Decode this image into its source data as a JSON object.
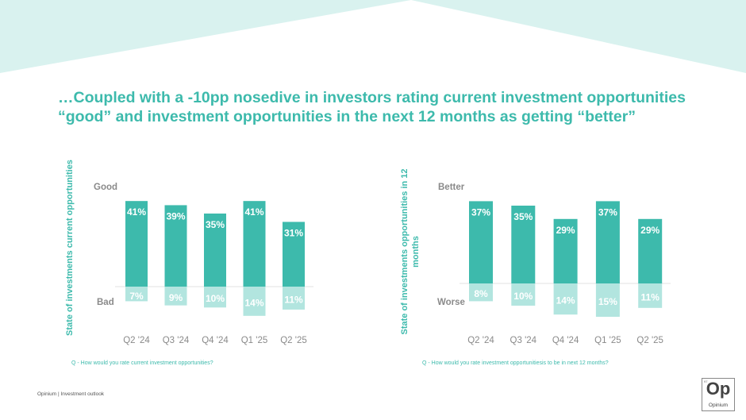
{
  "slide": {
    "title_line1": "…Coupled with a  -10pp nosedive in investors rating current investment opportunities",
    "title_line2": "“good” and investment opportunities in the next 12 months as getting “better”",
    "footer": "Opinium  |  Investment outlook",
    "logo": {
      "small": "97",
      "mark": "Op",
      "name": "Opinium"
    },
    "colors": {
      "accent": "#3dbaac",
      "positive_bar": "#3dbaac",
      "negative_bar": "#b2e5df",
      "header_band": "#d9f2ef",
      "tick_text": "#8a8a8a"
    }
  },
  "chart_data": [
    {
      "type": "bar",
      "stacked_diverging": true,
      "title": "",
      "ylabel": "State of investments current opportunities",
      "xlabel": "",
      "top_label": "Good",
      "bottom_label": "Bad",
      "categories": [
        "Q2 '24",
        "Q3 '24",
        "Q4 '24",
        "Q1 '25",
        "Q2 '25"
      ],
      "series": [
        {
          "name": "Good",
          "values": [
            41,
            39,
            35,
            41,
            31
          ],
          "labels": [
            "41%",
            "39%",
            "35%",
            "41%",
            "31%"
          ]
        },
        {
          "name": "Bad",
          "values": [
            7,
            9,
            10,
            14,
            11
          ],
          "labels": [
            "7%",
            "9%",
            "10%",
            "14%",
            "11%"
          ]
        }
      ],
      "question": "Q - How would you rate current investment opportunities?",
      "grid": false
    },
    {
      "type": "bar",
      "stacked_diverging": true,
      "title": "",
      "ylabel_line1": "State of investments opportunities in 12",
      "ylabel_line2": "months",
      "xlabel": "",
      "top_label": "Better",
      "bottom_label": "Worse",
      "categories": [
        "Q2 '24",
        "Q3 '24",
        "Q4 '24",
        "Q1 '25",
        "Q2 '25"
      ],
      "series": [
        {
          "name": "Better",
          "values": [
            37,
            35,
            29,
            37,
            29
          ],
          "labels": [
            "37%",
            "35%",
            "29%",
            "37%",
            "29%"
          ]
        },
        {
          "name": "Worse",
          "values": [
            8,
            10,
            14,
            15,
            11
          ],
          "labels": [
            "8%",
            "10%",
            "14%",
            "15%",
            "11%"
          ]
        }
      ],
      "question": "Q - How would you rate investment opportunitiesis to be in next 12 months?",
      "grid": false
    }
  ]
}
